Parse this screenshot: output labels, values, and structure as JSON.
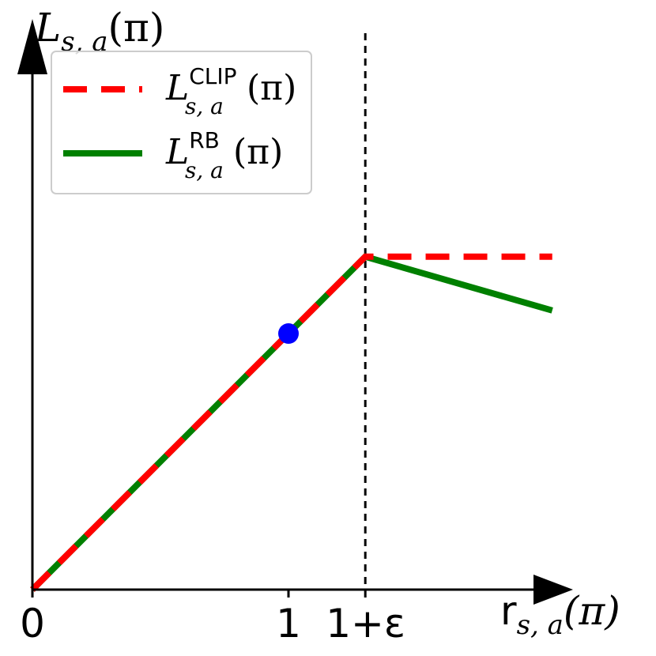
{
  "chart_data": {
    "type": "line",
    "ylabel": {
      "main": "L",
      "sub": "s, a",
      "arg": "(π)"
    },
    "xlabel": {
      "main": "r",
      "sub": "s, a",
      "arg": "(π)"
    },
    "xlim": [
      0,
      1.6
    ],
    "ylim": [
      0,
      1.6
    ],
    "x_ticks": [
      {
        "value": 0,
        "label": "0"
      },
      {
        "value": 1,
        "label": "1"
      },
      {
        "value": 1.3,
        "label": "1+ε"
      }
    ],
    "vline_x": 1.3,
    "series": [
      {
        "name": "L_CLIP",
        "legend": {
          "main": "L",
          "sup": "CLIP",
          "sub": "s, a",
          "arg": "(π)"
        },
        "color": "#ff0000",
        "style": "dashed",
        "x": [
          0,
          1.3,
          2.03
        ],
        "y": [
          0,
          1.3,
          1.3
        ]
      },
      {
        "name": "L_RB",
        "legend": {
          "main": "L",
          "sup": "RB",
          "sub": "s, a",
          "arg": "(π)"
        },
        "color": "#008000",
        "style": "solid",
        "x": [
          0,
          1.3,
          2.03
        ],
        "y": [
          0,
          1.3,
          1.09
        ]
      }
    ],
    "marker": {
      "x": 1,
      "y": 1,
      "color": "#0000ff"
    },
    "grid": false,
    "legend_position": "top-left"
  }
}
